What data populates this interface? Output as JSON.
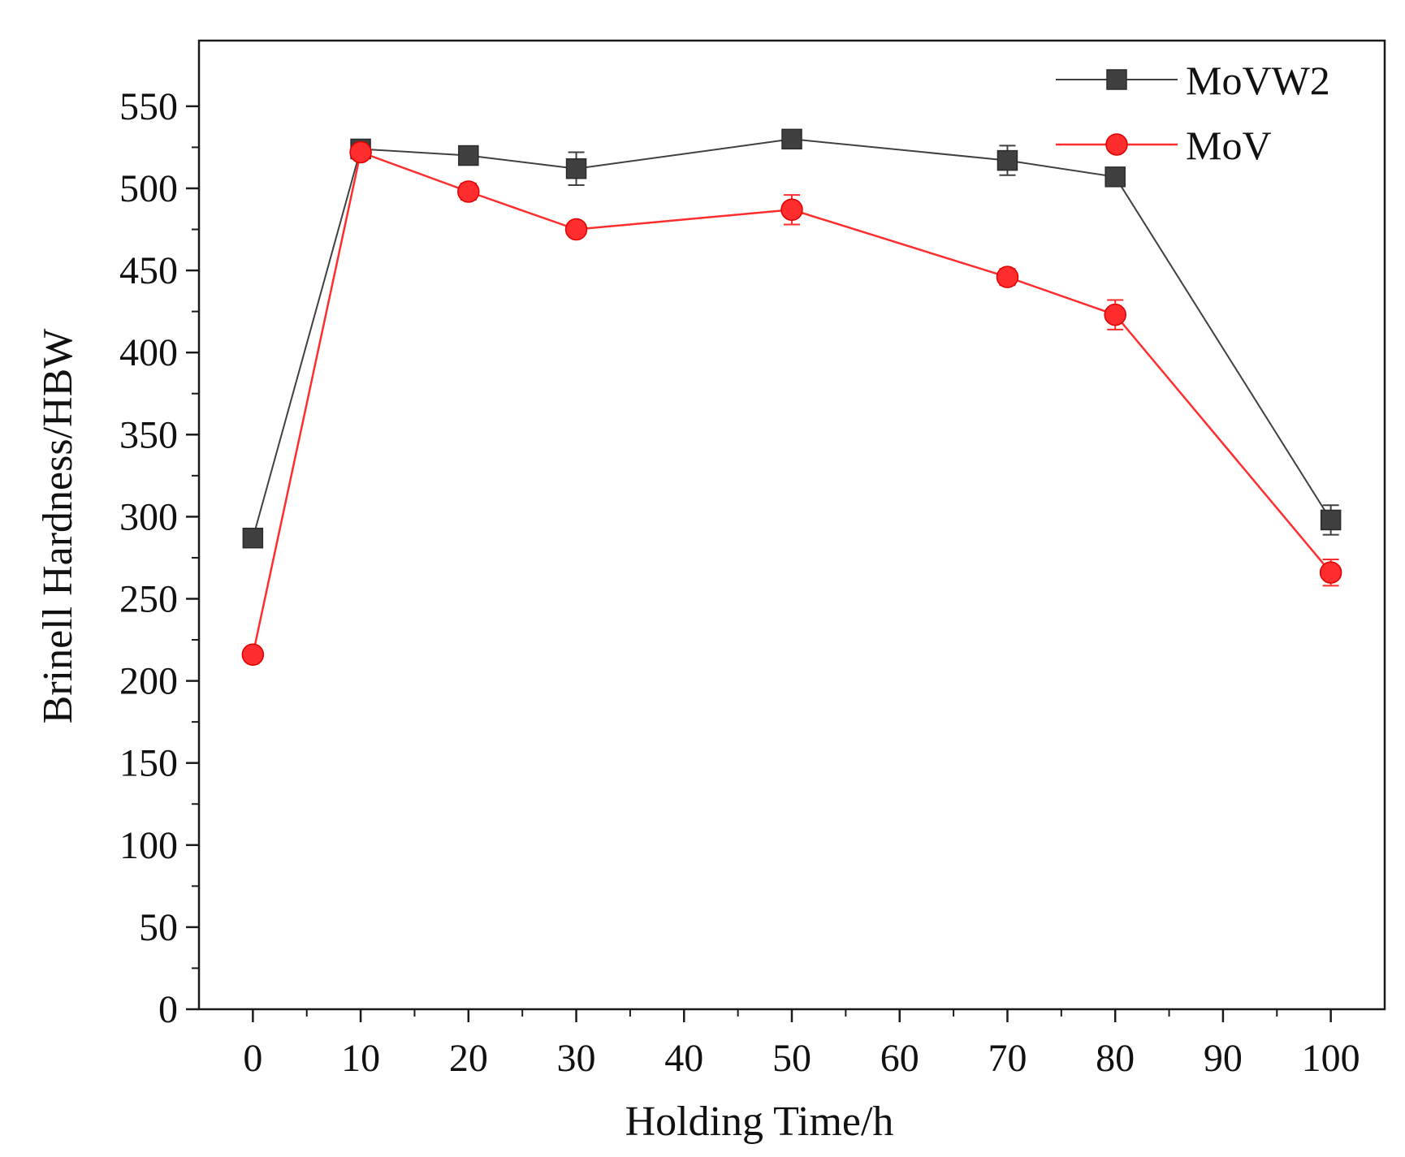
{
  "chart_data": {
    "type": "line",
    "title": "",
    "xlabel": "Holding Time/h",
    "ylabel": "Brinell Hardness/HBW",
    "xlim": [
      -5,
      105
    ],
    "ylim": [
      0,
      590
    ],
    "xticks": [
      0,
      10,
      20,
      30,
      40,
      50,
      60,
      70,
      80,
      90,
      100
    ],
    "yticks": [
      0,
      50,
      100,
      150,
      200,
      250,
      300,
      350,
      400,
      450,
      500,
      550
    ],
    "xtick_labels": [
      "0",
      "10",
      "20",
      "30",
      "40",
      "50",
      "60",
      "70",
      "80",
      "90",
      "100"
    ],
    "ytick_labels": [
      "0",
      "50",
      "100",
      "150",
      "200",
      "250",
      "300",
      "350",
      "400",
      "450",
      "500",
      "550"
    ],
    "grid": false,
    "legend_position": "top-right",
    "x": [
      0,
      10,
      20,
      30,
      50,
      70,
      80,
      100
    ],
    "series": [
      {
        "name": "MoVW2",
        "color": "#404040",
        "marker": "square",
        "values": [
          287,
          524,
          520,
          512,
          530,
          517,
          507,
          298
        ],
        "errors": [
          4,
          4,
          5,
          10,
          5,
          9,
          4,
          9
        ]
      },
      {
        "name": "MoV",
        "color": "#ff2d2d",
        "marker": "circle",
        "values": [
          216,
          522,
          498,
          475,
          487,
          446,
          423,
          266
        ],
        "errors": [
          3,
          4,
          5,
          4,
          9,
          5,
          9,
          8
        ]
      }
    ]
  }
}
